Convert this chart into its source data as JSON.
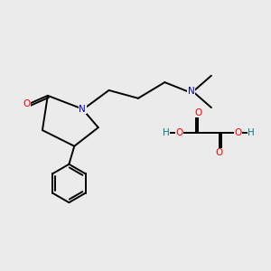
{
  "bg_color": "#ebebeb",
  "atom_colors": {
    "C": "#000000",
    "N": "#0000cc",
    "O": "#ff0000",
    "H": "#008080"
  },
  "bond_color": "#000000",
  "line_width": 1.4,
  "font_size": 7.5
}
